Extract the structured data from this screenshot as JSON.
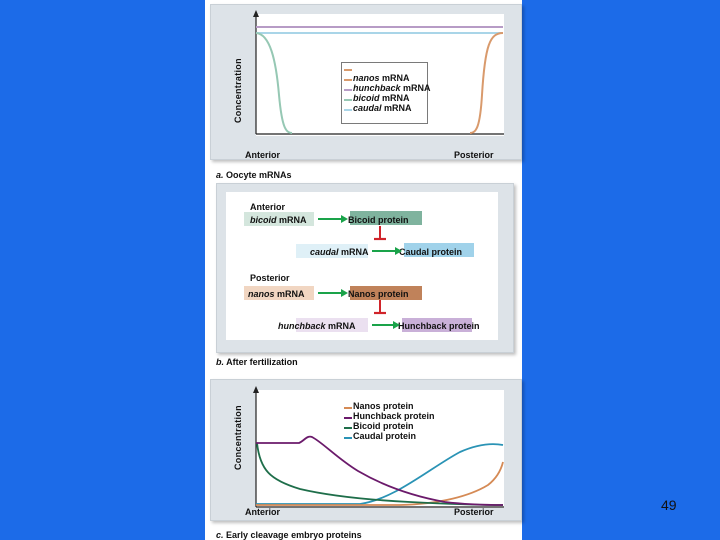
{
  "slide": {
    "page_number": "49"
  },
  "panel_a": {
    "ylabel": "Concentration",
    "x_left": "Anterior",
    "x_right": "Posterior",
    "caption_letter": "a.",
    "caption_text": " Oocyte mRNAs",
    "legend": [
      {
        "italic": "nanos",
        "rest": " mRNA",
        "color": "#d99a6c"
      },
      {
        "italic": "hunchback",
        "rest": " mRNA",
        "color": "#b79cc6"
      },
      {
        "italic": "bicoid",
        "rest": " mRNA",
        "color": "#96c8b4"
      },
      {
        "italic": "caudal",
        "rest": " mRNA",
        "color": "#a9d5e8"
      }
    ]
  },
  "panel_b": {
    "anterior_label": "Anterior",
    "posterior_label": "Posterior",
    "bicoid_mrna_italic": "bicoid",
    "bicoid_mrna_rest": " mRNA",
    "bicoid_protein": "Bicoid protein",
    "caudal_mrna_italic": "caudal",
    "caudal_mrna_rest": " mRNA",
    "caudal_protein": "Caudal protein",
    "nanos_mrna_italic": "nanos",
    "nanos_mrna_rest": " mRNA",
    "nanos_protein": "Nanos protein",
    "hunchback_mrna_italic": "hunchback",
    "hunchback_mrna_rest": " mRNA",
    "hunchback_protein": "Hunchback protein",
    "caption_letter": "b.",
    "caption_text": " After fertilization",
    "colors": {
      "arrow": "#1aa34a",
      "inhibit": "#d0242a"
    }
  },
  "panel_c": {
    "ylabel": "Concentration",
    "x_left": "Anterior",
    "x_right": "Posterior",
    "caption_letter": "c.",
    "caption_text": " Early cleavage embryo proteins",
    "legend": [
      {
        "label": "Nanos protein",
        "color": "#d58a55"
      },
      {
        "label": "Hunchback protein",
        "color": "#6b1a6b"
      },
      {
        "label": "Bicoid protein",
        "color": "#1e6e4a"
      },
      {
        "label": "Caudal protein",
        "color": "#2a93b5"
      }
    ]
  }
}
